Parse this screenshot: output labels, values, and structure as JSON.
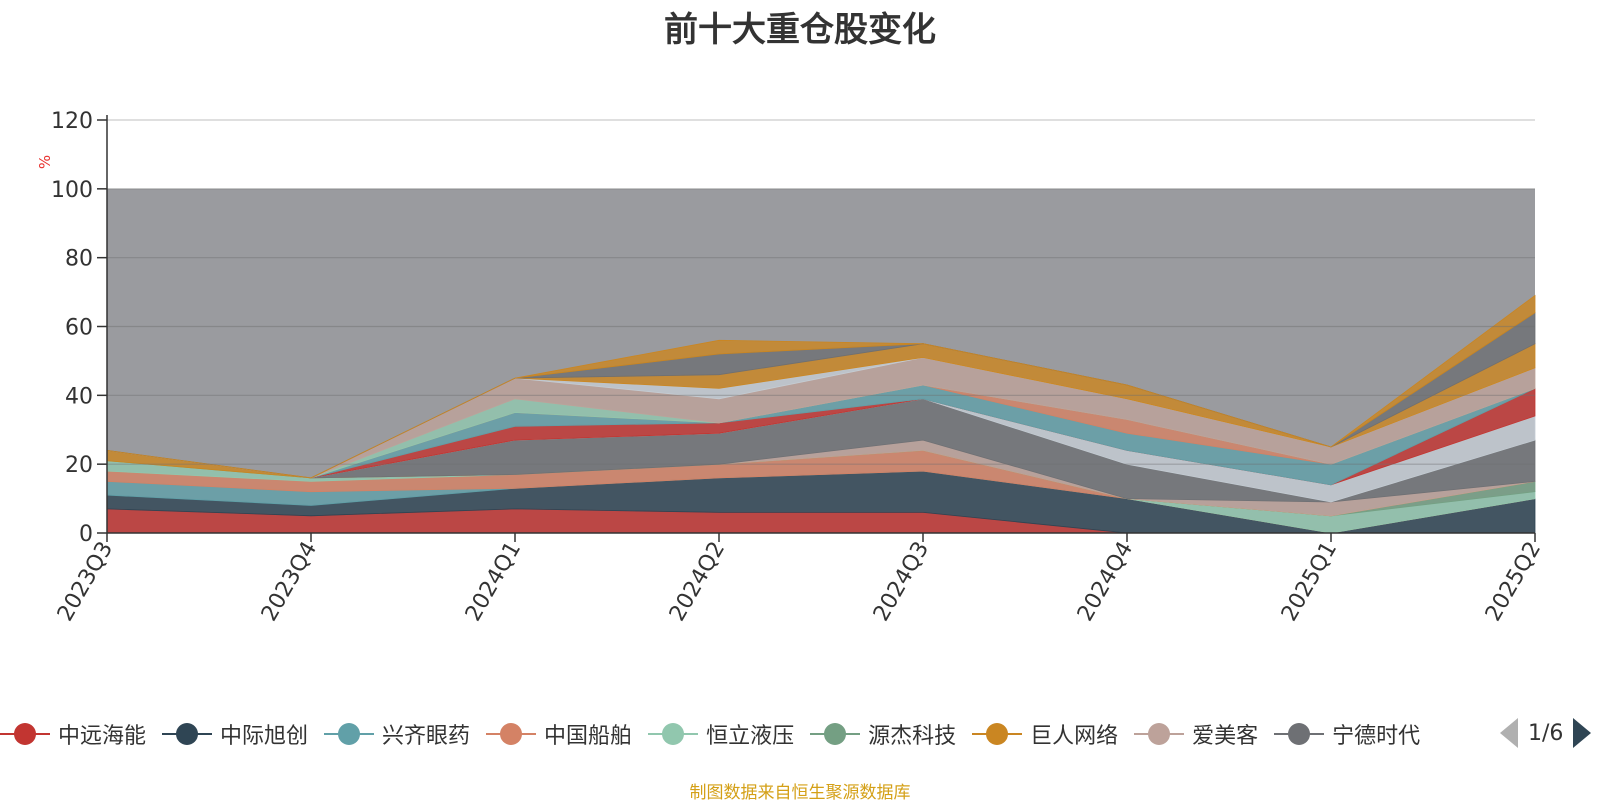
{
  "title": "前十大重仓股变化",
  "source_note": "制图数据来自恒生聚源数据库",
  "legend_page": "1/6",
  "chart_data": {
    "type": "area",
    "stacked": true,
    "title": "前十大重仓股变化",
    "ylabel": "%",
    "ylim": [
      0,
      120
    ],
    "yticks": [
      "0",
      "20",
      "40",
      "60",
      "80",
      "100",
      "120"
    ],
    "categories": [
      "2023Q3",
      "2023Q4",
      "2024Q1",
      "2024Q2",
      "2024Q3",
      "2024Q4",
      "2025Q1",
      "2025Q2"
    ],
    "grid": true,
    "background_band": {
      "from": 0,
      "to": 100,
      "color": "#9a9b9f"
    },
    "legend_position": "bottom",
    "series": [
      {
        "name": "中远海能",
        "color": "#c23531",
        "values": [
          7,
          5,
          7,
          6,
          6,
          0,
          0,
          0
        ]
      },
      {
        "name": "中际旭创",
        "color": "#2f4554",
        "values": [
          4,
          3,
          6,
          10,
          12,
          10,
          0,
          10
        ]
      },
      {
        "name": "兴齐眼药",
        "color": "#61a0a8",
        "values": [
          4,
          4,
          0,
          0,
          0,
          0,
          0,
          0
        ]
      },
      {
        "name": "中国船舶",
        "color": "#d48265",
        "values": [
          3,
          3,
          4,
          4,
          6,
          0,
          0,
          0
        ]
      },
      {
        "name": "恒立液压",
        "color": "#91c7ae",
        "values": [
          3,
          1,
          0,
          0,
          0,
          0,
          5,
          2
        ]
      },
      {
        "name": "源杰科技",
        "color": "#749f83",
        "values": [
          0,
          0,
          0,
          0,
          0,
          0,
          0,
          3
        ]
      },
      {
        "name": "巨人网络",
        "color": "#ca8622",
        "values": [
          3,
          0,
          0,
          0,
          0,
          0,
          0,
          0
        ]
      },
      {
        "name": "爱美客",
        "color": "#bda29a",
        "values": [
          0,
          0,
          0,
          0,
          3,
          0,
          4,
          0
        ]
      },
      {
        "name": "宁德时代",
        "color": "#6e7074",
        "values": [
          0,
          0,
          10,
          9,
          12,
          10,
          0,
          12
        ]
      },
      {
        "name": "",
        "color": "#c4ccd3",
        "values": [
          0,
          0,
          0,
          0,
          0,
          4,
          5,
          7
        ]
      },
      {
        "name": "",
        "color": "#c23531",
        "values": [
          0,
          0,
          4,
          3,
          0,
          0,
          0,
          8
        ]
      },
      {
        "name": "",
        "color": "#61a0a8",
        "values": [
          0,
          0,
          4,
          0,
          4,
          5,
          6,
          0
        ]
      },
      {
        "name": "",
        "color": "#d48265",
        "values": [
          0,
          0,
          0,
          0,
          0,
          4,
          0,
          0
        ]
      },
      {
        "name": "",
        "color": "#91c7ae",
        "values": [
          0,
          0,
          4,
          0,
          0,
          0,
          0,
          0
        ]
      },
      {
        "name": "",
        "color": "#bda29a",
        "values": [
          0,
          0,
          6,
          7,
          8,
          6,
          5,
          6
        ]
      },
      {
        "name": "",
        "color": "#c4ccd3",
        "values": [
          0,
          0,
          0,
          3,
          0,
          0,
          0,
          0
        ]
      },
      {
        "name": "",
        "color": "#ca8622",
        "values": [
          0,
          0,
          0,
          4,
          4,
          4,
          0,
          7
        ]
      },
      {
        "name": "",
        "color": "#6e7074",
        "values": [
          0,
          0,
          0,
          6,
          0,
          0,
          0,
          9
        ]
      },
      {
        "name": "",
        "color": "#ca8622",
        "values": [
          0,
          0,
          0,
          4,
          0,
          0,
          0,
          5
        ]
      }
    ]
  }
}
